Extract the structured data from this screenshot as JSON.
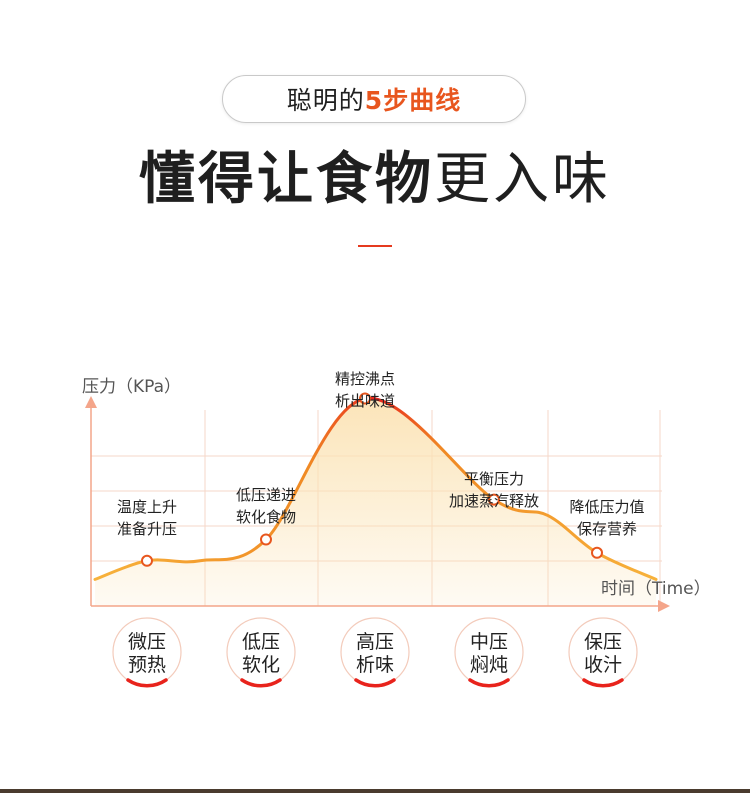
{
  "header": {
    "pill_text": "聪明的",
    "pill_highlight": "5步曲线",
    "headline_bold": "懂得让食物",
    "headline_light": "更入味"
  },
  "colors": {
    "accent": "#e8561e",
    "curve_start": "#f7b23b",
    "curve_peak": "#e8231c",
    "fill": "#fbe3b5",
    "grid": "#f6d7c8",
    "axis": "#f4a58a",
    "text": "#1f1f1f"
  },
  "chart_data": {
    "type": "line",
    "ylabel": "压力（KPa）",
    "xlabel": "时间（Time）",
    "grid": true,
    "curve_levels": [
      0.1,
      0.17,
      0.17,
      0.25,
      0.78,
      0.4,
      0.34,
      0.2,
      0.1
    ],
    "stages": [
      {
        "annotation": [
          "温度上升",
          "准备升压"
        ],
        "label": [
          "微压",
          "预热"
        ],
        "level": 0.17
      },
      {
        "annotation": [
          "低压递进",
          "软化食物"
        ],
        "label": [
          "低压",
          "软化"
        ],
        "level": 0.25
      },
      {
        "annotation": [
          "精控沸点",
          "析出味道"
        ],
        "label": [
          "高压",
          "析味"
        ],
        "level": 0.78
      },
      {
        "annotation": [
          "平衡压力",
          "加速蒸汽释放"
        ],
        "label": [
          "中压",
          "焖炖"
        ],
        "level": 0.4
      },
      {
        "annotation": [
          "降低压力值",
          "保存营养"
        ],
        "label": [
          "保压",
          "收汁"
        ],
        "level": 0.2
      }
    ]
  }
}
